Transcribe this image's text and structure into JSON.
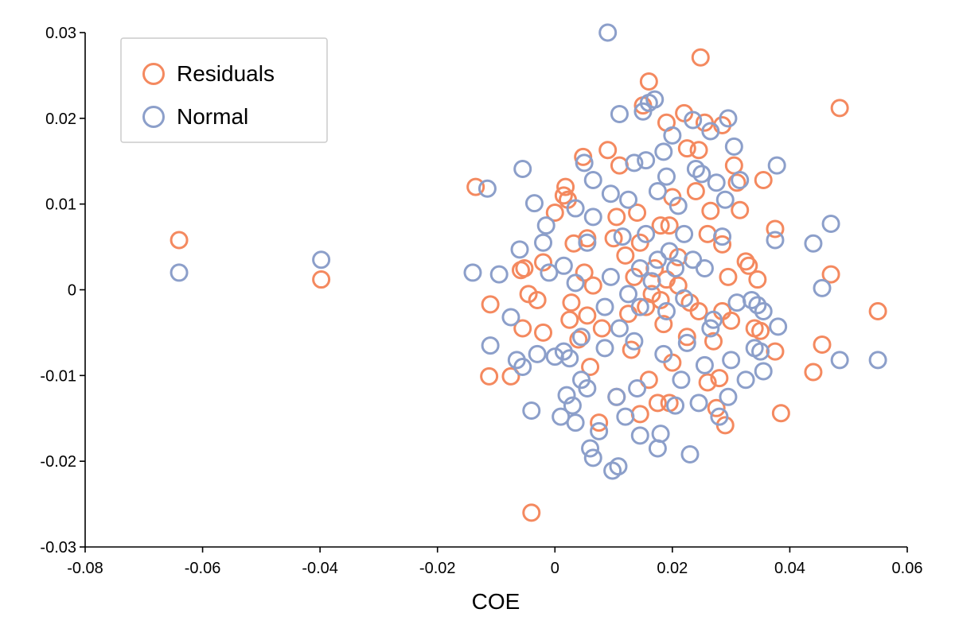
{
  "chart_data": {
    "type": "scatter",
    "xlabel": "COE",
    "ylabel": "",
    "xlim": [
      -0.08,
      0.06
    ],
    "ylim": [
      -0.03,
      0.03
    ],
    "x_ticks": [
      -0.08,
      -0.06,
      -0.04,
      -0.02,
      0,
      0.02,
      0.04,
      0.06
    ],
    "x_tick_labels": [
      "-0.08",
      "-0.06",
      "-0.04",
      "-0.02",
      "0",
      "0.02",
      "0.04",
      "0.06"
    ],
    "y_ticks": [
      -0.03,
      -0.02,
      -0.01,
      0,
      0.01,
      0.02,
      0.03
    ],
    "y_tick_labels": [
      "-0.03",
      "-0.02",
      "-0.01",
      "0",
      "0.01",
      "0.02",
      "0.03"
    ],
    "grid": false,
    "legend": {
      "position": "top-left",
      "entries": [
        "Residuals",
        "Normal"
      ]
    },
    "colors": {
      "Residuals": "#f4895f",
      "Normal": "#8c9fca"
    },
    "marker": "open-circle",
    "series": [
      {
        "name": "Residuals",
        "points": [
          [
            -0.064,
            0.0058
          ],
          [
            -0.0398,
            0.0012
          ],
          [
            -0.0135,
            0.012
          ],
          [
            -0.011,
            -0.0017
          ],
          [
            -0.0112,
            -0.0101
          ],
          [
            -0.0075,
            -0.0101
          ],
          [
            -0.0058,
            0.0023
          ],
          [
            -0.0055,
            -0.0045
          ],
          [
            -0.0052,
            0.0025
          ],
          [
            -0.0045,
            -0.0005
          ],
          [
            -0.003,
            -0.0012
          ],
          [
            -0.002,
            -0.005
          ],
          [
            -0.002,
            0.0032
          ],
          [
            0,
            0.009
          ],
          [
            0.0015,
            0.011
          ],
          [
            0.0018,
            0.012
          ],
          [
            0.0022,
            0.0105
          ],
          [
            0.0028,
            -0.0015
          ],
          [
            0.0032,
            0.0054
          ],
          [
            0.004,
            -0.0058
          ],
          [
            0.0048,
            0.0155
          ],
          [
            0.005,
            0.002
          ],
          [
            0.0055,
            -0.003
          ],
          [
            0.006,
            -0.009
          ],
          [
            0.0075,
            -0.0155
          ],
          [
            0.009,
            0.0163
          ],
          [
            0.01,
            0.006
          ],
          [
            0.0105,
            -0.0125
          ],
          [
            0.011,
            0.0145
          ],
          [
            0.012,
            0.004
          ],
          [
            0.0125,
            -0.0028
          ],
          [
            0.013,
            -0.007
          ],
          [
            0.014,
            0.009
          ],
          [
            0.0145,
            -0.0145
          ],
          [
            0.015,
            0.0215
          ],
          [
            0.016,
            0.0243
          ],
          [
            0.016,
            -0.0105
          ],
          [
            0.017,
            0.0025
          ],
          [
            0.0175,
            -0.0132
          ],
          [
            0.018,
            0.0075
          ],
          [
            0.0185,
            -0.004
          ],
          [
            0.019,
            0.0195
          ],
          [
            0.02,
            0.0108
          ],
          [
            0.02,
            -0.0085
          ],
          [
            0.021,
            0.0038
          ],
          [
            0.022,
            0.0206
          ],
          [
            0.0225,
            0.0165
          ],
          [
            0.023,
            -0.0015
          ],
          [
            0.024,
            0.0115
          ],
          [
            0.0245,
            0.0163
          ],
          [
            0.0248,
            0.0271
          ],
          [
            0.0255,
            0.0195
          ],
          [
            0.026,
            0.0065
          ],
          [
            0.026,
            -0.0108
          ],
          [
            0.0265,
            0.0092
          ],
          [
            0.027,
            -0.006
          ],
          [
            0.028,
            -0.0103
          ],
          [
            0.0285,
            0.0053
          ],
          [
            0.0285,
            0.0192
          ],
          [
            0.029,
            -0.0158
          ],
          [
            0.0295,
            0.0015
          ],
          [
            0.03,
            -0.0036
          ],
          [
            0.0305,
            0.0145
          ],
          [
            0.031,
            0.0125
          ],
          [
            0.0315,
            0.0093
          ],
          [
            0.0325,
            0.0033
          ],
          [
            0.033,
            0.0028
          ],
          [
            0.034,
            -0.0045
          ],
          [
            0.0345,
            0.0012
          ],
          [
            0.035,
            -0.0048
          ],
          [
            0.0355,
            0.0128
          ],
          [
            0.0375,
            0.0071
          ],
          [
            0.0375,
            -0.0072
          ],
          [
            0.0385,
            -0.0144
          ],
          [
            0.044,
            -0.0096
          ],
          [
            0.0455,
            -0.0064
          ],
          [
            0.047,
            0.0018
          ],
          [
            0.0485,
            0.0212
          ],
          [
            0.055,
            -0.0025
          ],
          [
            0.0165,
            -0.0005
          ],
          [
            0.0135,
            0.0015
          ],
          [
            0.018,
            -0.0012
          ],
          [
            0.021,
            0.0005
          ],
          [
            0.0155,
            -0.002
          ],
          [
            0.019,
            0.0012
          ],
          [
            0.0025,
            -0.0035
          ],
          [
            0.0065,
            0.0005
          ],
          [
            0.008,
            -0.0045
          ],
          [
            0.0245,
            -0.0025
          ],
          [
            0.0195,
            -0.0132
          ],
          [
            0.0225,
            -0.0055
          ],
          [
            0.0105,
            0.0085
          ],
          [
            0.0275,
            -0.0138
          ],
          [
            0.0145,
            0.0055
          ],
          [
            0.0055,
            0.006
          ],
          [
            0.0195,
            0.0075
          ],
          [
            0.0285,
            -0.0025
          ],
          [
            -0.004,
            -0.026
          ]
        ]
      },
      {
        "name": "Normal",
        "points": [
          [
            -0.064,
            0.002
          ],
          [
            -0.0398,
            0.0035
          ],
          [
            -0.014,
            0.002
          ],
          [
            -0.0115,
            0.0118
          ],
          [
            -0.011,
            -0.0065
          ],
          [
            -0.0095,
            0.0018
          ],
          [
            -0.0075,
            -0.0032
          ],
          [
            -0.0065,
            -0.0082
          ],
          [
            -0.006,
            0.0047
          ],
          [
            -0.0055,
            0.0141
          ],
          [
            -0.0055,
            -0.009
          ],
          [
            -0.004,
            -0.0141
          ],
          [
            -0.0035,
            0.0101
          ],
          [
            -0.003,
            -0.0075
          ],
          [
            -0.002,
            0.0055
          ],
          [
            -0.0015,
            0.0075
          ],
          [
            -0.001,
            0.002
          ],
          [
            0,
            -0.0078
          ],
          [
            0.001,
            -0.0148
          ],
          [
            0.0015,
            0.0028
          ],
          [
            0.002,
            -0.0123
          ],
          [
            0.0025,
            -0.008
          ],
          [
            0.003,
            -0.0135
          ],
          [
            0.0035,
            0.0095
          ],
          [
            0.0035,
            -0.0155
          ],
          [
            0.0045,
            -0.0105
          ],
          [
            0.005,
            0.0148
          ],
          [
            0.0055,
            0.0055
          ],
          [
            0.006,
            -0.0185
          ],
          [
            0.0065,
            -0.0196
          ],
          [
            0.0065,
            0.0128
          ],
          [
            0.0075,
            -0.0165
          ],
          [
            0.0085,
            -0.0068
          ],
          [
            0.0095,
            0.0112
          ],
          [
            0.0098,
            -0.0211
          ],
          [
            0.0108,
            -0.0206
          ],
          [
            0.011,
            0.0205
          ],
          [
            0.0115,
            0.0062
          ],
          [
            0.012,
            -0.0148
          ],
          [
            0.0135,
            0.0148
          ],
          [
            0.014,
            -0.0115
          ],
          [
            0.0145,
            -0.017
          ],
          [
            0.015,
            0.0208
          ],
          [
            0.0155,
            0.0151
          ],
          [
            0.016,
            0.0218
          ],
          [
            0.017,
            0.0222
          ],
          [
            0.0175,
            -0.0185
          ],
          [
            0.018,
            -0.0168
          ],
          [
            0.0185,
            0.0161
          ],
          [
            0.019,
            0.0132
          ],
          [
            0.02,
            0.018
          ],
          [
            0.0205,
            -0.0135
          ],
          [
            0.021,
            0.0098
          ],
          [
            0.022,
            0.0065
          ],
          [
            0.0225,
            -0.0062
          ],
          [
            0.023,
            -0.0192
          ],
          [
            0.0235,
            0.0198
          ],
          [
            0.024,
            0.0141
          ],
          [
            0.0245,
            -0.0132
          ],
          [
            0.025,
            0.0135
          ],
          [
            0.0255,
            -0.0088
          ],
          [
            0.0265,
            0.0185
          ],
          [
            0.027,
            -0.0035
          ],
          [
            0.0275,
            0.0125
          ],
          [
            0.028,
            -0.0148
          ],
          [
            0.0285,
            0.0062
          ],
          [
            0.029,
            0.0105
          ],
          [
            0.0295,
            0.02
          ],
          [
            0.03,
            -0.0082
          ],
          [
            0.0305,
            0.0167
          ],
          [
            0.031,
            -0.0015
          ],
          [
            0.0315,
            0.0128
          ],
          [
            0.0325,
            -0.0105
          ],
          [
            0.0335,
            -0.0012
          ],
          [
            0.034,
            -0.0068
          ],
          [
            0.0345,
            -0.0018
          ],
          [
            0.035,
            -0.0072
          ],
          [
            0.0355,
            -0.0095
          ],
          [
            0.0355,
            -0.0025
          ],
          [
            0.0375,
            0.0058
          ],
          [
            0.0378,
            0.0145
          ],
          [
            0.038,
            -0.0043
          ],
          [
            0.044,
            0.0054
          ],
          [
            0.0455,
            0.0002
          ],
          [
            0.047,
            0.0077
          ],
          [
            0.0485,
            -0.0082
          ],
          [
            0.055,
            -0.0082
          ],
          [
            0.009,
            0.03
          ],
          [
            0.0165,
            0.001
          ],
          [
            0.0145,
            -0.002
          ],
          [
            0.0175,
            0.0035
          ],
          [
            0.0125,
            -0.0005
          ],
          [
            0.019,
            -0.0025
          ],
          [
            0.011,
            -0.0045
          ],
          [
            0.0205,
            0.0025
          ],
          [
            0.0155,
            0.0065
          ],
          [
            0.0095,
            0.0015
          ],
          [
            0.022,
            -0.001
          ],
          [
            0.0135,
            -0.006
          ],
          [
            0.0185,
            -0.0075
          ],
          [
            0.0085,
            -0.002
          ],
          [
            0.0235,
            0.0035
          ],
          [
            0.0065,
            0.0085
          ],
          [
            0.0125,
            0.0105
          ],
          [
            0.0175,
            0.0115
          ],
          [
            0.0215,
            -0.0105
          ],
          [
            0.0055,
            -0.0115
          ],
          [
            0.0105,
            -0.0125
          ],
          [
            0.0195,
            0.0045
          ],
          [
            0.0145,
            0.0025
          ],
          [
            0.0035,
            0.0008
          ],
          [
            0.0045,
            -0.0055
          ],
          [
            0.0265,
            -0.0045
          ],
          [
            0.0255,
            0.0025
          ],
          [
            0.0015,
            -0.0072
          ],
          [
            0.0295,
            -0.0125
          ]
        ]
      }
    ]
  }
}
